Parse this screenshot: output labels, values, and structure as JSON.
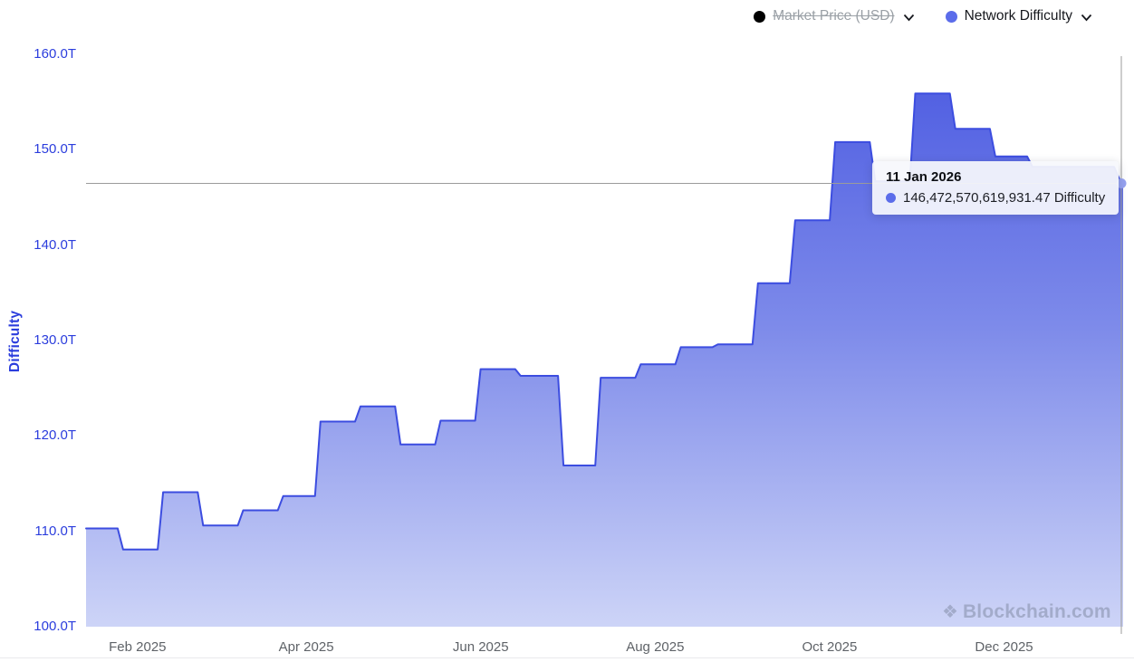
{
  "legend": {
    "market_price": {
      "label": "Market Price (USD)",
      "dot_color": "#000000",
      "disabled": true
    },
    "network_difficulty": {
      "label": "Network Difficulty",
      "dot_color": "#5b6cea",
      "disabled": false
    }
  },
  "tooltip": {
    "date": "11 Jan 2026",
    "value_text": "146,472,570,619,931.47 Difficulty",
    "dot_color": "#5b6cea"
  },
  "watermark": {
    "icon": "❖",
    "text": "Blockchain.com"
  },
  "chart_data": {
    "type": "area",
    "step": true,
    "title": "",
    "xlabel": "",
    "ylabel": "Difficulty",
    "unit": "T",
    "ylim": [
      100,
      160
    ],
    "grid": false,
    "legend_position": "top-right",
    "series_name": "Network Difficulty",
    "yticks": [
      {
        "v": 160,
        "label": "160.0T"
      },
      {
        "v": 150,
        "label": "150.0T"
      },
      {
        "v": 140,
        "label": "140.0T"
      },
      {
        "v": 130,
        "label": "130.0T"
      },
      {
        "v": 120,
        "label": "120.0T"
      },
      {
        "v": 110,
        "label": "110.0T"
      },
      {
        "v": 100,
        "label": "100.0T"
      }
    ],
    "xticks": [
      {
        "d": "2025-02-01",
        "label": "Feb 2025"
      },
      {
        "d": "2025-04-01",
        "label": "Apr 2025"
      },
      {
        "d": "2025-06-01",
        "label": "Jun 2025"
      },
      {
        "d": "2025-08-01",
        "label": "Aug 2025"
      },
      {
        "d": "2025-10-01",
        "label": "Oct 2025"
      },
      {
        "d": "2025-12-01",
        "label": "Dec 2025"
      }
    ],
    "points": [
      {
        "d": "2025-01-14",
        "v": 110.3
      },
      {
        "d": "2025-01-26",
        "v": 108.1
      },
      {
        "d": "2025-02-09",
        "v": 114.1
      },
      {
        "d": "2025-02-23",
        "v": 110.6
      },
      {
        "d": "2025-03-09",
        "v": 112.2
      },
      {
        "d": "2025-03-23",
        "v": 113.7
      },
      {
        "d": "2025-04-05",
        "v": 121.5
      },
      {
        "d": "2025-04-19",
        "v": 123.1
      },
      {
        "d": "2025-05-03",
        "v": 119.1
      },
      {
        "d": "2025-05-17",
        "v": 121.6
      },
      {
        "d": "2025-05-31",
        "v": 127.0
      },
      {
        "d": "2025-06-14",
        "v": 126.3
      },
      {
        "d": "2025-06-29",
        "v": 116.9
      },
      {
        "d": "2025-07-12",
        "v": 126.1
      },
      {
        "d": "2025-07-26",
        "v": 127.5
      },
      {
        "d": "2025-08-09",
        "v": 129.3
      },
      {
        "d": "2025-08-22",
        "v": 129.6
      },
      {
        "d": "2025-09-05",
        "v": 136.0
      },
      {
        "d": "2025-09-18",
        "v": 142.6
      },
      {
        "d": "2025-10-02",
        "v": 150.8
      },
      {
        "d": "2025-10-16",
        "v": 146.7
      },
      {
        "d": "2025-10-30",
        "v": 155.9
      },
      {
        "d": "2025-11-13",
        "v": 152.2
      },
      {
        "d": "2025-11-27",
        "v": 149.3
      },
      {
        "d": "2025-12-10",
        "v": 148.2
      },
      {
        "d": "2026-01-11",
        "v": 146.47
      }
    ],
    "highlight": {
      "date": "2026-01-11",
      "value": 146.47,
      "value_full": "146,472,570,619,931.47"
    },
    "colors": {
      "line": "#3c4de0",
      "fill_top": "#4b5ae1",
      "fill_mid": "#7e8bea",
      "fill_bottom": "#cdd4f7",
      "marker": "#96a2f0",
      "crosshair": "#9b9b9b",
      "axis_label": "#2b3ddd",
      "xaxis_label": "#5f6368"
    }
  }
}
